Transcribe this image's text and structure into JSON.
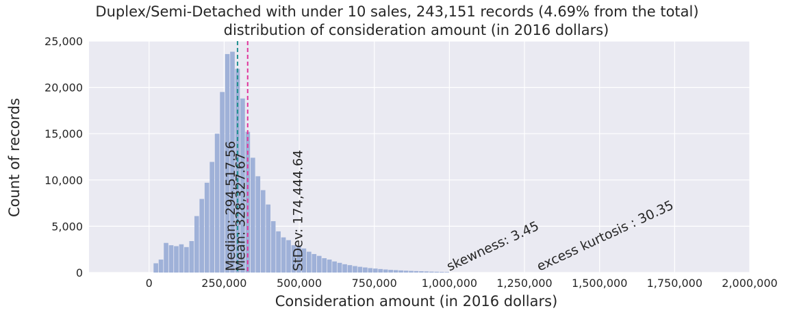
{
  "chart_data": {
    "type": "histogram",
    "title_lines": [
      "Duplex/Semi-Detached with under 10 sales, 243,151 records (4.69% from the total)",
      "distribution of consideration amount (in 2016 dollars)"
    ],
    "xlabel": "Consideration amount (in 2016 dollars)",
    "ylabel": "Count of records",
    "xlim": [
      -200000,
      2000000
    ],
    "ylim": [
      0,
      25000
    ],
    "x_ticks": [
      0,
      250000,
      500000,
      750000,
      1000000,
      1250000,
      1500000,
      1750000,
      2000000
    ],
    "x_tick_labels": [
      "0",
      "250,000",
      "500,000",
      "750,000",
      "1,000,000",
      "1,250,000",
      "1,500,000",
      "1,750,000",
      "2,000,000"
    ],
    "y_ticks": [
      0,
      5000,
      10000,
      15000,
      20000,
      25000
    ],
    "y_tick_labels": [
      "0",
      "5,000",
      "10,000",
      "15,000",
      "20,000",
      "25,000"
    ],
    "grid": true,
    "bar_color": "#9fb1d8",
    "background_color": "#eaeaf2",
    "bins": [
      {
        "x0": 15000,
        "x1": 32000,
        "count": 1000
      },
      {
        "x0": 32000,
        "x1": 49000,
        "count": 1400
      },
      {
        "x0": 49000,
        "x1": 66000,
        "count": 3200
      },
      {
        "x0": 66000,
        "x1": 83000,
        "count": 2950
      },
      {
        "x0": 83000,
        "x1": 100000,
        "count": 2850
      },
      {
        "x0": 100000,
        "x1": 117000,
        "count": 3050
      },
      {
        "x0": 117000,
        "x1": 134000,
        "count": 2750
      },
      {
        "x0": 134000,
        "x1": 151000,
        "count": 3400
      },
      {
        "x0": 151000,
        "x1": 168000,
        "count": 6100
      },
      {
        "x0": 168000,
        "x1": 185000,
        "count": 7950
      },
      {
        "x0": 185000,
        "x1": 202000,
        "count": 9700
      },
      {
        "x0": 202000,
        "x1": 219000,
        "count": 11950
      },
      {
        "x0": 219000,
        "x1": 236000,
        "count": 15000
      },
      {
        "x0": 236000,
        "x1": 253000,
        "count": 19500
      },
      {
        "x0": 253000,
        "x1": 270000,
        "count": 23600
      },
      {
        "x0": 270000,
        "x1": 287000,
        "count": 23850
      },
      {
        "x0": 287000,
        "x1": 304000,
        "count": 22000
      },
      {
        "x0": 304000,
        "x1": 321000,
        "count": 18800
      },
      {
        "x0": 321000,
        "x1": 338000,
        "count": 15200
      },
      {
        "x0": 338000,
        "x1": 355000,
        "count": 12400
      },
      {
        "x0": 355000,
        "x1": 372000,
        "count": 10400
      },
      {
        "x0": 372000,
        "x1": 389000,
        "count": 8900
      },
      {
        "x0": 389000,
        "x1": 406000,
        "count": 7350
      },
      {
        "x0": 406000,
        "x1": 423000,
        "count": 5550
      },
      {
        "x0": 423000,
        "x1": 440000,
        "count": 4450
      },
      {
        "x0": 440000,
        "x1": 457000,
        "count": 3800
      },
      {
        "x0": 457000,
        "x1": 474000,
        "count": 3500
      },
      {
        "x0": 474000,
        "x1": 491000,
        "count": 2950
      },
      {
        "x0": 491000,
        "x1": 508000,
        "count": 2850
      },
      {
        "x0": 508000,
        "x1": 525000,
        "count": 2600
      },
      {
        "x0": 525000,
        "x1": 542000,
        "count": 2250
      },
      {
        "x0": 542000,
        "x1": 559000,
        "count": 2000
      },
      {
        "x0": 559000,
        "x1": 576000,
        "count": 1800
      },
      {
        "x0": 576000,
        "x1": 593000,
        "count": 1550
      },
      {
        "x0": 593000,
        "x1": 610000,
        "count": 1400
      },
      {
        "x0": 610000,
        "x1": 627000,
        "count": 1200
      },
      {
        "x0": 627000,
        "x1": 644000,
        "count": 1050
      },
      {
        "x0": 644000,
        "x1": 661000,
        "count": 900
      },
      {
        "x0": 661000,
        "x1": 678000,
        "count": 800
      },
      {
        "x0": 678000,
        "x1": 695000,
        "count": 700
      },
      {
        "x0": 695000,
        "x1": 712000,
        "count": 620
      },
      {
        "x0": 712000,
        "x1": 729000,
        "count": 550
      },
      {
        "x0": 729000,
        "x1": 746000,
        "count": 480
      },
      {
        "x0": 746000,
        "x1": 763000,
        "count": 430
      },
      {
        "x0": 763000,
        "x1": 780000,
        "count": 380
      },
      {
        "x0": 780000,
        "x1": 797000,
        "count": 330
      },
      {
        "x0": 797000,
        "x1": 814000,
        "count": 290
      },
      {
        "x0": 814000,
        "x1": 831000,
        "count": 260
      },
      {
        "x0": 831000,
        "x1": 848000,
        "count": 230
      },
      {
        "x0": 848000,
        "x1": 865000,
        "count": 200
      },
      {
        "x0": 865000,
        "x1": 882000,
        "count": 180
      },
      {
        "x0": 882000,
        "x1": 899000,
        "count": 160
      },
      {
        "x0": 899000,
        "x1": 916000,
        "count": 140
      },
      {
        "x0": 916000,
        "x1": 933000,
        "count": 120
      },
      {
        "x0": 933000,
        "x1": 950000,
        "count": 100
      },
      {
        "x0": 950000,
        "x1": 967000,
        "count": 85
      },
      {
        "x0": 967000,
        "x1": 984000,
        "count": 70
      },
      {
        "x0": 984000,
        "x1": 1001000,
        "count": 60
      }
    ],
    "lines": [
      {
        "label": "Median: 294,517.56",
        "value": 294517.56,
        "color": "#1f8f8f"
      },
      {
        "label": "Mean: 328,327.67",
        "value": 328327.67,
        "color": "#e0339a"
      }
    ],
    "annotations": [
      {
        "text": "StDev: 174,444.64",
        "x": 510000,
        "y": 0,
        "rotation": -90
      },
      {
        "text": "skewness: 3.45",
        "x": 1000000,
        "y": 0,
        "rotation": -25
      },
      {
        "text": "excess kurtosis : 30.35",
        "x": 1300000,
        "y": 0,
        "rotation": -25
      }
    ]
  }
}
